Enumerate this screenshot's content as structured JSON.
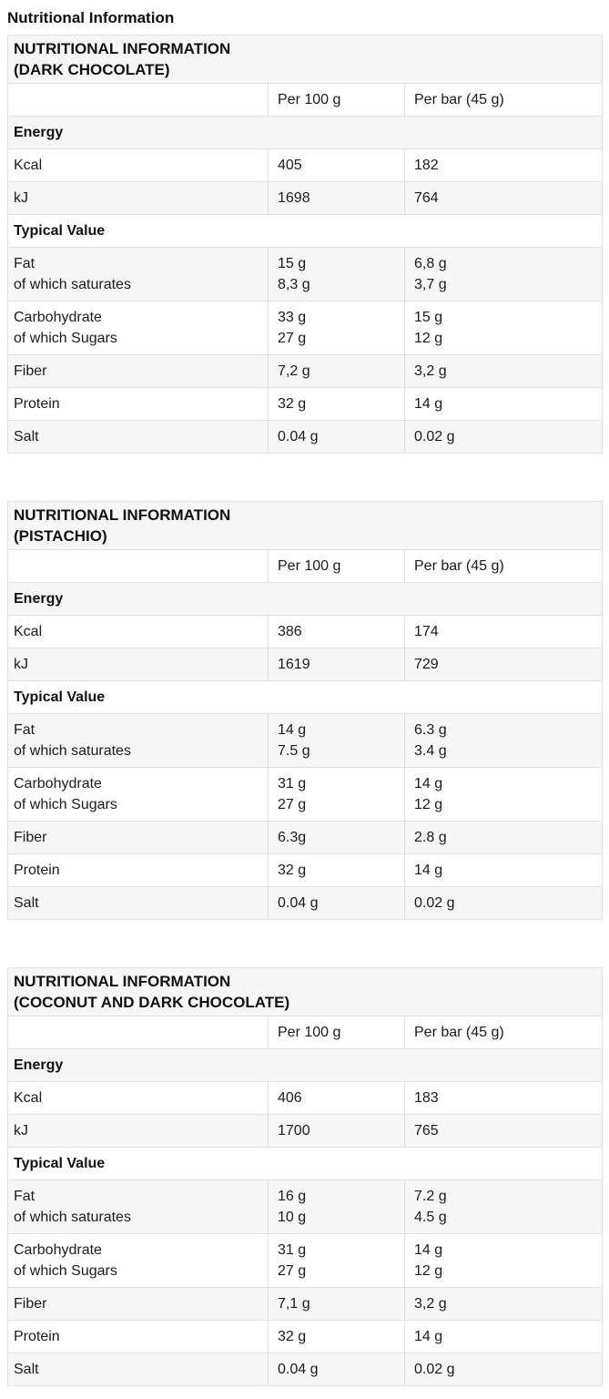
{
  "page_title": "Nutritional Information",
  "tables": [
    {
      "title": "NUTRITIONAL INFORMATION\n(DARK CHOCOLATE)",
      "columns": [
        "",
        "Per 100 g",
        "Per bar (45 g)"
      ],
      "rows": [
        {
          "type": "section",
          "label": "Energy"
        },
        {
          "label": "Kcal",
          "per100": "405",
          "perbar": "182"
        },
        {
          "label": "kJ",
          "per100": "1698",
          "perbar": "764"
        },
        {
          "type": "section",
          "label": "Typical Value"
        },
        {
          "label": "Fat\nof which saturates",
          "per100": "15 g\n8,3 g",
          "perbar": "6,8 g\n3,7 g"
        },
        {
          "label": "Carbohydrate\nof which Sugars",
          "per100": "33 g\n27 g",
          "perbar": "15 g\n12 g"
        },
        {
          "label": "Fiber",
          "per100": "7,2 g",
          "perbar": "3,2 g"
        },
        {
          "label": "Protein",
          "per100": "32 g",
          "perbar": "14 g"
        },
        {
          "label": "Salt",
          "per100": "0.04 g",
          "perbar": "0.02 g"
        }
      ]
    },
    {
      "title": "NUTRITIONAL INFORMATION\n(PISTACHIO)",
      "columns": [
        "",
        "Per 100 g",
        "Per bar (45 g)"
      ],
      "rows": [
        {
          "type": "section",
          "label": "Energy"
        },
        {
          "label": "Kcal",
          "per100": "386",
          "perbar": "174"
        },
        {
          "label": "kJ",
          "per100": "1619",
          "perbar": "729"
        },
        {
          "type": "section",
          "label": "Typical Value"
        },
        {
          "label": "Fat\nof which saturates",
          "per100": "14 g\n7.5 g",
          "perbar": "6.3 g\n3.4 g"
        },
        {
          "label": "Carbohydrate\nof which Sugars",
          "per100": "31 g\n27 g",
          "perbar": "14 g\n12 g"
        },
        {
          "label": "Fiber",
          "per100": "6.3g",
          "perbar": "2.8 g"
        },
        {
          "label": "Protein",
          "per100": "32 g",
          "perbar": "14 g"
        },
        {
          "label": "Salt",
          "per100": "0.04 g",
          "perbar": "0.02 g"
        }
      ]
    },
    {
      "title": "NUTRITIONAL INFORMATION\n(COCONUT AND DARK CHOCOLATE)",
      "columns": [
        "",
        "Per 100 g",
        "Per bar (45 g)"
      ],
      "rows": [
        {
          "type": "section",
          "label": "Energy"
        },
        {
          "label": "Kcal",
          "per100": "406",
          "perbar": "183"
        },
        {
          "label": "kJ",
          "per100": "1700",
          "perbar": "765"
        },
        {
          "type": "section",
          "label": "Typical Value"
        },
        {
          "label": "Fat\nof which saturates",
          "per100": "16 g\n10 g",
          "perbar": "7.2 g\n4.5 g"
        },
        {
          "label": "Carbohydrate\nof which Sugars",
          "per100": "31 g\n27 g",
          "perbar": "14 g\n12 g"
        },
        {
          "label": "Fiber",
          "per100": "7,1 g",
          "perbar": "3,2 g"
        },
        {
          "label": "Protein",
          "per100": "32 g",
          "perbar": "14 g"
        },
        {
          "label": "Salt",
          "per100": "0.04 g",
          "perbar": "0.02 g"
        }
      ]
    }
  ]
}
